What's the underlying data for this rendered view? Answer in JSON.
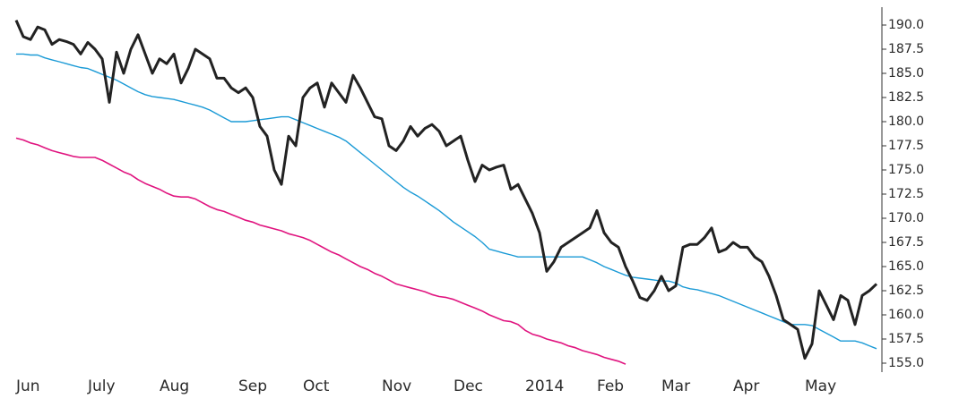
{
  "chart_data": {
    "type": "line",
    "categories": [
      "Jun",
      null,
      null,
      null,
      null,
      null,
      null,
      null,
      null,
      null,
      "July",
      null,
      null,
      null,
      null,
      null,
      null,
      null,
      null,
      null,
      "Aug",
      null,
      null,
      null,
      null,
      null,
      null,
      null,
      null,
      null,
      null,
      "Sep",
      null,
      null,
      null,
      null,
      null,
      null,
      null,
      null,
      "Oct",
      null,
      null,
      null,
      null,
      null,
      null,
      null,
      null,
      null,
      null,
      "Nov",
      null,
      null,
      null,
      null,
      null,
      null,
      null,
      null,
      null,
      "Dec",
      null,
      null,
      null,
      null,
      null,
      null,
      null,
      null,
      null,
      "2014",
      null,
      null,
      null,
      null,
      null,
      null,
      null,
      null,
      null,
      "Feb",
      null,
      null,
      null,
      null,
      null,
      null,
      null,
      null,
      "Mar",
      null,
      null,
      null,
      null,
      null,
      null,
      null,
      null,
      null,
      "Apr",
      null,
      null,
      null,
      null,
      null,
      null,
      null,
      null,
      null,
      "May",
      null,
      null,
      null,
      null,
      null,
      null,
      null,
      null,
      null,
      null
    ],
    "series": [
      {
        "color": "#222222",
        "width": 3,
        "values": [
          190.5,
          188.8,
          188.5,
          189.8,
          189.5,
          188.0,
          188.5,
          188.3,
          188.0,
          187.0,
          188.2,
          187.5,
          186.5,
          182.0,
          187.2,
          185.0,
          187.5,
          189.0,
          187.0,
          185.0,
          186.5,
          186.0,
          187.0,
          184.0,
          185.5,
          187.5,
          187.0,
          186.5,
          184.5,
          184.5,
          183.5,
          183.0,
          183.5,
          182.5,
          179.5,
          178.5,
          175.0,
          173.5,
          178.5,
          177.5,
          182.5,
          183.5,
          184.0,
          181.5,
          184.0,
          183.0,
          182.0,
          184.8,
          183.5,
          182.0,
          180.5,
          180.3,
          177.5,
          177.0,
          178.0,
          179.5,
          178.5,
          179.3,
          179.7,
          179.0,
          177.5,
          178.0,
          178.5,
          176.0,
          173.8,
          175.5,
          175.0,
          175.3,
          175.5,
          173.0,
          173.5,
          172.0,
          170.5,
          168.5,
          164.5,
          165.5,
          167.0,
          167.5,
          168.0,
          168.5,
          169.0,
          170.8,
          168.5,
          167.5,
          167.0,
          165.0,
          163.5,
          161.8,
          161.5,
          162.5,
          164.0,
          162.5,
          163.0,
          167.0,
          167.3,
          167.3,
          168.0,
          169.0,
          166.5,
          166.8,
          167.5,
          167.0,
          167.0,
          166.0,
          165.5,
          164.0,
          162.0,
          159.5,
          159.0,
          158.5,
          155.5,
          157.0,
          162.5,
          161.0,
          159.5,
          162.0,
          161.5,
          159.0,
          162.0,
          162.5,
          163.2
        ]
      },
      {
        "color": "#1a9ad6",
        "width": 1.4,
        "values": [
          187.0,
          187.0,
          186.9,
          186.9,
          186.6,
          186.4,
          186.2,
          186.0,
          185.8,
          185.6,
          185.5,
          185.2,
          184.9,
          184.6,
          184.3,
          183.9,
          183.5,
          183.1,
          182.8,
          182.6,
          182.5,
          182.4,
          182.3,
          182.1,
          181.9,
          181.7,
          181.5,
          181.2,
          180.8,
          180.4,
          180.0,
          180.0,
          180.0,
          180.1,
          180.2,
          180.3,
          180.4,
          180.5,
          180.5,
          180.2,
          179.9,
          179.6,
          179.3,
          179.0,
          178.7,
          178.4,
          178.0,
          177.4,
          176.8,
          176.2,
          175.6,
          175.0,
          174.4,
          173.8,
          173.2,
          172.7,
          172.3,
          171.8,
          171.3,
          170.8,
          170.2,
          169.6,
          169.1,
          168.6,
          168.1,
          167.5,
          166.8,
          166.6,
          166.4,
          166.2,
          166.0,
          166.0,
          166.0,
          166.0,
          166.0,
          166.0,
          166.0,
          166.0,
          166.0,
          166.0,
          165.7,
          165.4,
          165.0,
          164.7,
          164.4,
          164.1,
          163.9,
          163.8,
          163.7,
          163.6,
          163.5,
          163.5,
          163.3,
          162.9,
          162.7,
          162.6,
          162.4,
          162.2,
          162.0,
          161.7,
          161.4,
          161.1,
          160.8,
          160.5,
          160.2,
          159.9,
          159.6,
          159.3,
          159.0,
          159.0,
          159.0,
          158.9,
          158.5,
          158.1,
          157.7,
          157.3,
          157.3,
          157.3,
          157.1,
          156.8,
          156.5
        ]
      },
      {
        "color": "#e0147f",
        "width": 1.6,
        "values": [
          178.3,
          178.1,
          177.8,
          177.6,
          177.3,
          177.0,
          176.8,
          176.6,
          176.4,
          176.3,
          176.3,
          176.3,
          176.0,
          175.6,
          175.2,
          174.8,
          174.5,
          174.0,
          173.6,
          173.3,
          173.0,
          172.6,
          172.3,
          172.2,
          172.2,
          172.0,
          171.6,
          171.2,
          170.9,
          170.7,
          170.4,
          170.1,
          169.8,
          169.6,
          169.3,
          169.1,
          168.9,
          168.7,
          168.4,
          168.2,
          168.0,
          167.7,
          167.3,
          166.9,
          166.5,
          166.2,
          165.8,
          165.4,
          165.0,
          164.7,
          164.3,
          164.0,
          163.6,
          163.2,
          163.0,
          162.8,
          162.6,
          162.4,
          162.1,
          161.9,
          161.8,
          161.6,
          161.3,
          161.0,
          160.7,
          160.4,
          160.0,
          159.7,
          159.4,
          159.3,
          159.0,
          158.4,
          158.0,
          157.8,
          157.5,
          157.3,
          157.1,
          156.8,
          156.6,
          156.3,
          156.1,
          155.9,
          155.6,
          155.4,
          155.2,
          154.9,
          null,
          null,
          null,
          null,
          null,
          null,
          null,
          null,
          null,
          null,
          null,
          null,
          null,
          null,
          null,
          null,
          null,
          null,
          null,
          null,
          null,
          null,
          null,
          null,
          null,
          null,
          null,
          null,
          null,
          null,
          null,
          null,
          null,
          null,
          null
        ]
      }
    ],
    "ylim": [
      154.5,
      191.5
    ],
    "yticks": [
      {
        "value": 155,
        "label": "155.0"
      },
      {
        "value": 157.5,
        "label": "157.5"
      },
      {
        "value": 160,
        "label": "160.0"
      },
      {
        "value": 162.5,
        "label": "162.5"
      },
      {
        "value": 165,
        "label": "165.0"
      },
      {
        "value": 167.5,
        "label": "167.5"
      },
      {
        "value": 170,
        "label": "170.0"
      },
      {
        "value": 172.5,
        "label": "172.5"
      },
      {
        "value": 175,
        "label": "175.0"
      },
      {
        "value": 177.5,
        "label": "177.5"
      },
      {
        "value": 180,
        "label": "180.0"
      },
      {
        "value": 182.5,
        "label": "182.5"
      },
      {
        "value": 185,
        "label": "185.0"
      },
      {
        "value": 187.5,
        "label": "187.5"
      },
      {
        "value": 190,
        "label": "190.0"
      }
    ],
    "grid": false,
    "axis_position": "right"
  }
}
